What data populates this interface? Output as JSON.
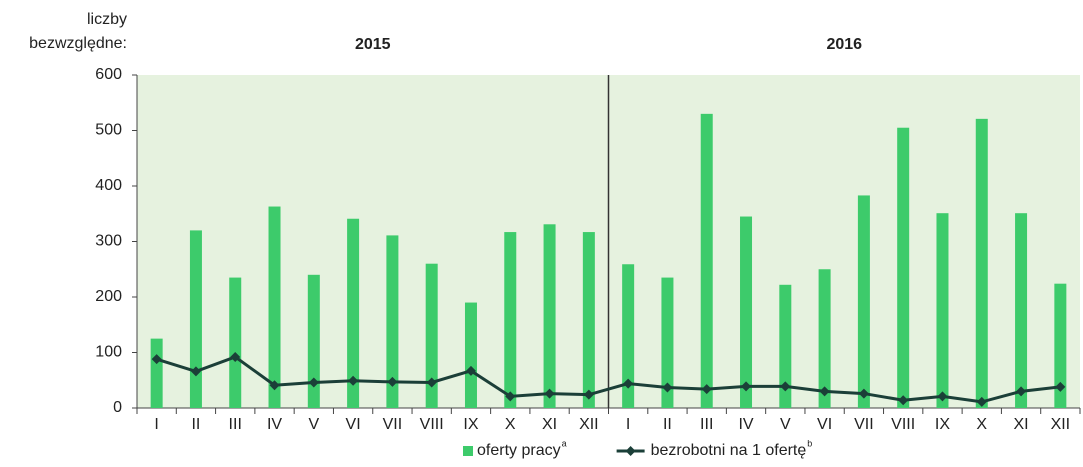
{
  "chart_data": {
    "type": "bar_line",
    "ylabel": "liczby bezwzględne:",
    "groups": [
      {
        "label": "2015",
        "span": [
          0,
          11
        ]
      },
      {
        "label": "2016",
        "span": [
          12,
          23
        ]
      }
    ],
    "categories": [
      "I",
      "II",
      "III",
      "IV",
      "V",
      "VI",
      "VII",
      "VIII",
      "IX",
      "X",
      "XI",
      "XII",
      "I",
      "II",
      "III",
      "IV",
      "V",
      "VI",
      "VII",
      "VIII",
      "IX",
      "X",
      "XI",
      "XII"
    ],
    "series": [
      {
        "name": "oferty pracy",
        "note": "a",
        "kind": "bar",
        "color": "#3dcb6b",
        "values": [
          125,
          320,
          235,
          363,
          240,
          341,
          311,
          260,
          190,
          317,
          331,
          317,
          259,
          235,
          530,
          345,
          222,
          250,
          383,
          505,
          351,
          521,
          351,
          224
        ]
      },
      {
        "name": "bezrobotni na 1 ofertę",
        "note": "b",
        "kind": "line",
        "color": "#1b3f38",
        "values": [
          88,
          66,
          92,
          41,
          46,
          49,
          47,
          46,
          67,
          21,
          26,
          24,
          44,
          37,
          34,
          39,
          39,
          30,
          26,
          14,
          21,
          11,
          30,
          38
        ]
      }
    ],
    "ylim": [
      0,
      600
    ],
    "yticks": [
      0,
      100,
      200,
      300,
      400,
      500,
      600
    ],
    "plot_background": "#e6f2df"
  }
}
